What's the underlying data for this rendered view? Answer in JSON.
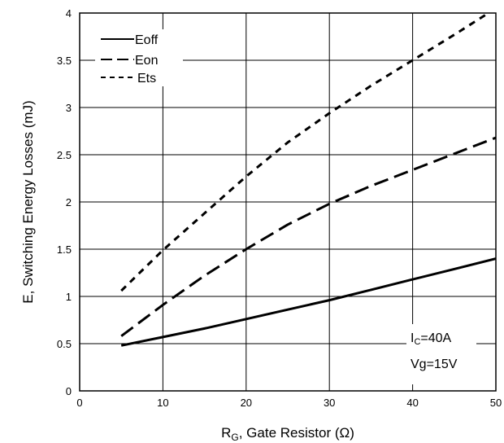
{
  "chart_data": {
    "type": "line",
    "xlabel_main": "R",
    "xlabel_sub": "G",
    "xlabel_rest": ", Gate Resistor (Ω)",
    "ylabel": "E, Switching Energy Losses (mJ)",
    "xlim": [
      0,
      50
    ],
    "ylim": [
      0,
      4
    ],
    "xticks": [
      0,
      10,
      20,
      30,
      40,
      50
    ],
    "yticks": [
      0,
      0.5,
      1,
      1.5,
      2,
      2.5,
      3,
      3.5,
      4
    ],
    "grid": true,
    "legend_position": "top-left",
    "series": [
      {
        "name": "Eoff",
        "dash": "solid",
        "x": [
          5,
          10,
          15,
          20,
          25,
          30,
          35,
          40,
          45,
          50
        ],
        "y": [
          0.48,
          0.57,
          0.66,
          0.76,
          0.86,
          0.96,
          1.07,
          1.18,
          1.29,
          1.4
        ]
      },
      {
        "name": "Eon",
        "dash": "long-dash",
        "x": [
          5,
          10,
          15,
          20,
          25,
          30,
          35,
          40,
          45,
          50
        ],
        "y": [
          0.58,
          0.91,
          1.22,
          1.5,
          1.76,
          1.98,
          2.17,
          2.34,
          2.51,
          2.68
        ]
      },
      {
        "name": "Ets",
        "dash": "short-dash",
        "x": [
          5,
          10,
          15,
          20,
          25,
          30,
          35,
          40,
          45,
          50
        ],
        "y": [
          1.06,
          1.49,
          1.88,
          2.27,
          2.63,
          2.94,
          3.23,
          3.5,
          3.77,
          4.05
        ]
      }
    ],
    "annotations": {
      "ic_main": "I",
      "ic_sub": "C",
      "ic_rest": "=40A",
      "vg": "Vg=15V"
    }
  }
}
